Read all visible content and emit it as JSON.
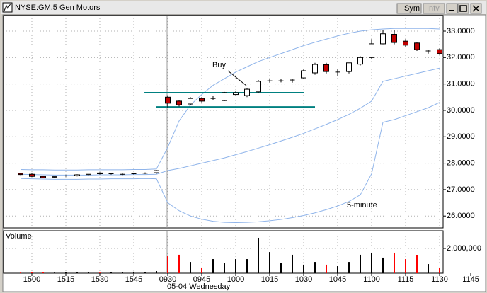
{
  "window": {
    "title": "NYSE:GM,5 Gen Motors",
    "buttons": [
      "Sym",
      "Intv"
    ]
  },
  "chart_data": [
    {
      "type": "candlestick",
      "up_color": "#ffffff",
      "down_color": "#c00000",
      "open": [
        27.61,
        27.58,
        27.5,
        27.47,
        27.52,
        27.52,
        27.57,
        27.63,
        27.6,
        27.58,
        27.6,
        27.62,
        27.64,
        30.5,
        30.35,
        30.24,
        30.45,
        30.45,
        30.37,
        30.6,
        30.56,
        30.7,
        31.12,
        31.12,
        31.15,
        31.23,
        31.42,
        31.73,
        31.45,
        31.47,
        31.75,
        32.0,
        32.52,
        32.88,
        32.62,
        32.55,
        32.25,
        32.3
      ],
      "high": [
        27.64,
        27.62,
        27.53,
        27.52,
        27.55,
        27.58,
        27.64,
        27.66,
        27.63,
        27.61,
        27.63,
        27.65,
        27.74,
        30.56,
        30.4,
        30.5,
        30.5,
        30.55,
        30.7,
        30.72,
        30.85,
        31.15,
        31.2,
        31.18,
        31.2,
        31.55,
        31.8,
        31.8,
        31.55,
        31.8,
        32.05,
        32.7,
        33.05,
        33.05,
        32.7,
        32.6,
        32.3,
        32.35
      ],
      "low": [
        27.55,
        27.48,
        27.43,
        27.45,
        27.49,
        27.5,
        27.55,
        27.57,
        27.57,
        27.55,
        27.57,
        27.59,
        27.6,
        30.1,
        30.15,
        30.2,
        30.3,
        30.4,
        30.35,
        30.57,
        30.5,
        30.65,
        31.05,
        31.06,
        31.05,
        31.2,
        31.35,
        31.4,
        31.3,
        31.4,
        31.7,
        31.95,
        32.5,
        32.5,
        32.4,
        32.25,
        32.15,
        32.1
      ],
      "close": [
        27.57,
        27.5,
        27.45,
        27.5,
        27.52,
        27.56,
        27.62,
        27.6,
        27.6,
        27.58,
        27.6,
        27.62,
        27.72,
        30.27,
        30.21,
        30.45,
        30.35,
        30.45,
        30.67,
        30.67,
        30.8,
        31.1,
        31.12,
        31.12,
        31.15,
        31.5,
        31.74,
        31.47,
        31.45,
        31.8,
        32.0,
        32.52,
        32.9,
        32.57,
        32.47,
        32.3,
        32.25,
        32.15
      ],
      "bands": {
        "color": "#8fb4ea",
        "upper": [
          27.76,
          27.75,
          27.75,
          27.74,
          27.74,
          27.74,
          27.75,
          27.75,
          27.75,
          27.75,
          27.76,
          27.76,
          27.78,
          28.6,
          29.6,
          30.2,
          30.6,
          30.95,
          31.2,
          31.45,
          31.65,
          31.85,
          32.0,
          32.15,
          32.3,
          32.45,
          32.58,
          32.7,
          32.82,
          32.92,
          33.0,
          33.05,
          33.08,
          33.1,
          33.1,
          33.1,
          33.1,
          33.08
        ],
        "middle": [
          27.58,
          27.57,
          27.56,
          27.55,
          27.55,
          27.55,
          27.55,
          27.56,
          27.56,
          27.56,
          27.57,
          27.57,
          27.58,
          27.72,
          27.8,
          27.9,
          28.0,
          28.1,
          28.2,
          28.32,
          28.44,
          28.57,
          28.7,
          28.84,
          28.98,
          29.13,
          29.3,
          29.47,
          29.65,
          29.85,
          30.08,
          30.35,
          31.1,
          31.2,
          31.3,
          31.4,
          31.5,
          31.6
        ],
        "lower": [
          27.42,
          27.41,
          27.4,
          27.39,
          27.39,
          27.39,
          27.4,
          27.4,
          27.41,
          27.41,
          27.41,
          27.42,
          27.41,
          26.5,
          26.2,
          26.0,
          25.88,
          25.8,
          25.76,
          25.75,
          25.76,
          25.78,
          25.82,
          25.87,
          25.94,
          26.02,
          26.12,
          26.24,
          26.38,
          26.55,
          26.8,
          27.6,
          29.55,
          29.65,
          29.8,
          29.95,
          30.1,
          30.3
        ]
      },
      "hlines": {
        "color": "#008080",
        "lines": [
          {
            "value": 30.67,
            "from": 10.94,
            "to": 25.06
          },
          {
            "value": 30.13,
            "from": 11.94,
            "to": 26.0
          }
        ]
      },
      "annotations": [
        "Buy",
        "5-minute"
      ],
      "date_label": "05-04 Wednesday",
      "xlim": [
        -1.5,
        37.3125
      ],
      "xticks": [
        {
          "value": 1,
          "label": "1500"
        },
        {
          "value": 4,
          "label": "1515"
        },
        {
          "value": 7,
          "label": "1530"
        },
        {
          "value": 10,
          "label": "1545"
        },
        {
          "value": 13,
          "label": "0930"
        },
        {
          "value": 16,
          "label": "0945"
        },
        {
          "value": 19,
          "label": "1000"
        },
        {
          "value": 22,
          "label": "1015"
        },
        {
          "value": 25,
          "label": "1030"
        },
        {
          "value": 28,
          "label": "1045"
        },
        {
          "value": 31,
          "label": "1100"
        },
        {
          "value": 34,
          "label": "1115"
        },
        {
          "value": 37,
          "label": "1130"
        },
        {
          "value": 39.75,
          "label": "1145"
        }
      ],
      "ylim": [
        25.55,
        33.59
      ],
      "yticks": [
        {
          "value": 26,
          "label": "26.0000"
        },
        {
          "value": 27,
          "label": "27.0000"
        },
        {
          "value": 28,
          "label": "28.0000"
        },
        {
          "value": 29,
          "label": "29.0000"
        },
        {
          "value": 30,
          "label": "30.0000"
        },
        {
          "value": 31,
          "label": "31.0000"
        },
        {
          "value": 32,
          "label": "32.0000"
        },
        {
          "value": 33,
          "label": "33.0000"
        }
      ],
      "grid": true
    },
    {
      "type": "bar",
      "title": "Volume",
      "up_color": "#000000",
      "down_color": "#ff0000",
      "values": [
        50000,
        80000,
        60000,
        50000,
        60000,
        60000,
        80000,
        50000,
        60000,
        80000,
        120000,
        80000,
        170000,
        1370000,
        1490000,
        910000,
        460000,
        1140000,
        800000,
        1140000,
        1140000,
        2860000,
        1710000,
        800000,
        1490000,
        690000,
        910000,
        690000,
        570000,
        910000,
        1490000,
        1660000,
        1260000,
        1660000,
        1140000,
        1430000,
        740000,
        460000
      ],
      "ylim": [
        0,
        3430000
      ],
      "yticks": [
        {
          "value": 2000000,
          "label": "2,000,000"
        }
      ]
    }
  ]
}
